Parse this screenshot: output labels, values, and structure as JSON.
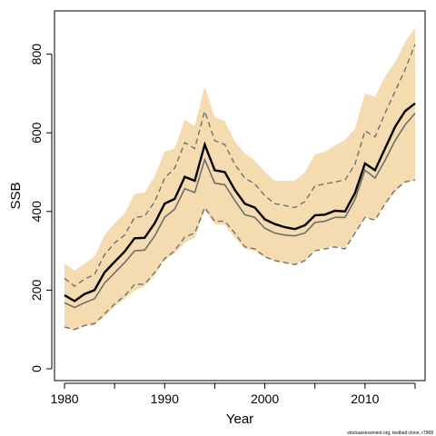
{
  "chart_data": {
    "type": "line",
    "xlabel": "Year",
    "ylabel": "SSB",
    "xlim": [
      1979,
      2016
    ],
    "ylim": [
      -30,
      910
    ],
    "x_ticks": [
      1980,
      1990,
      2000,
      2010
    ],
    "y_ticks": [
      0,
      200,
      400,
      600,
      800
    ],
    "grid": false,
    "footer": "stockassessment.org, testbalt clone, r7968",
    "colors": {
      "band": "#f5dcb0",
      "main": "#000000",
      "thin": "#6e6e6e",
      "dashed": "#707070"
    },
    "x": [
      1980,
      1981,
      1982,
      1983,
      1984,
      1985,
      1986,
      1987,
      1988,
      1989,
      1990,
      1991,
      1992,
      1993,
      1994,
      1995,
      1996,
      1997,
      1998,
      1999,
      2000,
      2001,
      2002,
      2003,
      2004,
      2005,
      2006,
      2007,
      2008,
      2009,
      2010,
      2011,
      2012,
      2013,
      2014,
      2015
    ],
    "series": [
      {
        "role": "ci-upper-band",
        "values": [
          268,
          250,
          268,
          285,
          340,
          370,
          395,
          445,
          448,
          490,
          552,
          560,
          633,
          617,
          718,
          640,
          630,
          578,
          548,
          530,
          500,
          478,
          478,
          478,
          500,
          545,
          552,
          568,
          582,
          610,
          700,
          692,
          743,
          780,
          830,
          868
        ]
      },
      {
        "role": "ci-lower-band",
        "values": [
          104,
          98,
          108,
          112,
          133,
          158,
          178,
          198,
          210,
          237,
          277,
          294,
          320,
          333,
          403,
          367,
          366,
          333,
          305,
          300,
          283,
          274,
          268,
          266,
          275,
          300,
          308,
          312,
          307,
          342,
          384,
          378,
          416,
          448,
          474,
          480
        ]
      },
      {
        "role": "upper-dashed",
        "values": [
          230,
          210,
          228,
          240,
          290,
          320,
          340,
          385,
          388,
          425,
          485,
          510,
          575,
          560,
          655,
          580,
          570,
          520,
          485,
          470,
          440,
          420,
          415,
          410,
          425,
          465,
          470,
          475,
          480,
          520,
          605,
          590,
          650,
          705,
          760,
          825
        ]
      },
      {
        "role": "lower-dashed",
        "values": [
          106,
          100,
          110,
          115,
          140,
          165,
          185,
          215,
          215,
          245,
          280,
          300,
          335,
          345,
          410,
          375,
          375,
          345,
          310,
          305,
          285,
          275,
          270,
          265,
          275,
          300,
          305,
          310,
          305,
          345,
          385,
          378,
          420,
          455,
          475,
          480
        ]
      },
      {
        "role": "estimate",
        "values": [
          187,
          172,
          190,
          200,
          245,
          272,
          298,
          332,
          333,
          370,
          420,
          432,
          488,
          478,
          570,
          505,
          500,
          455,
          420,
          410,
          380,
          368,
          360,
          355,
          365,
          390,
          392,
          402,
          400,
          447,
          522,
          505,
          560,
          615,
          655,
          675
        ]
      },
      {
        "role": "comparison",
        "values": [
          168,
          156,
          168,
          178,
          218,
          244,
          270,
          300,
          302,
          338,
          385,
          406,
          458,
          448,
          532,
          472,
          468,
          428,
          392,
          385,
          357,
          345,
          340,
          338,
          345,
          372,
          375,
          385,
          385,
          430,
          505,
          485,
          530,
          580,
          620,
          650
        ]
      }
    ]
  }
}
